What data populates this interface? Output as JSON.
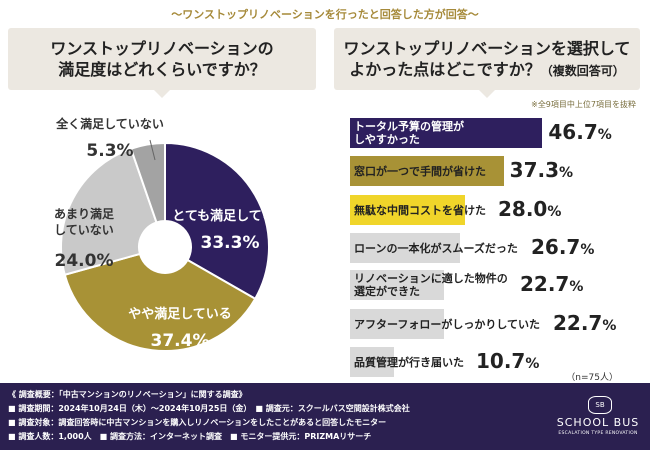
{
  "header": {
    "caption": "〜ワンストップリノベーションを行ったと回答した方が回答〜"
  },
  "left_panel": {
    "title_line1": "ワンストップリノベーションの",
    "title_line2": "満足度はどれくらいですか？"
  },
  "right_panel": {
    "title_line1": "ワンストップリノベーションを選択して",
    "title_line2": "よかった点はどこですか？",
    "title_suffix": "（複数回答可）",
    "note": "※全9項目中上位7項目を抜粋"
  },
  "chart_data": [
    {
      "type": "pie",
      "title": "ワンストップリノベーションの満足度はどれくらいですか？",
      "slices": [
        {
          "label": "とても満足している",
          "value": 33.3,
          "value_text": "33.3%",
          "color": "#2e1f5e"
        },
        {
          "label": "やや満足している",
          "value": 37.4,
          "value_text": "37.4%",
          "color": "#a89236"
        },
        {
          "label": "あまり満足していない",
          "value": 24.0,
          "value_text": "24.0%",
          "color": "#c9c9c9"
        },
        {
          "label": "全く満足していない",
          "value": 5.3,
          "value_text": "5.3%",
          "color": "#a3a3a3"
        }
      ]
    },
    {
      "type": "bar",
      "orientation": "horizontal",
      "title": "ワンストップリノベーションを選択してよかった点はどこですか？（複数回答可）",
      "xlim": [
        0,
        100
      ],
      "bars": [
        {
          "label": "トータル予算の管理が\nしやすかった",
          "value": 46.7,
          "num": "46.7",
          "color": "#2e1f5e",
          "text_color": "#ffffff"
        },
        {
          "label": "窓口が一つで手間が省けた",
          "value": 37.3,
          "num": "37.3",
          "color": "#a89236",
          "text_color": "#222222"
        },
        {
          "label": "無駄な中間コストを省けた",
          "value": 28.0,
          "num": "28.0",
          "color": "#f0d52a",
          "text_color": "#222222"
        },
        {
          "label": "ローンの一本化がスムーズだった",
          "value": 26.7,
          "num": "26.7",
          "color": "#d9d9d9",
          "text_color": "#222222"
        },
        {
          "label": "リノベーションに適した物件の\n選定ができた",
          "value": 22.7,
          "num": "22.7",
          "color": "#d9d9d9",
          "text_color": "#222222"
        },
        {
          "label": "アフターフォローがしっかりしていた",
          "value": 22.7,
          "num": "22.7",
          "color": "#d9d9d9",
          "text_color": "#222222"
        },
        {
          "label": "品質管理が行き届いた",
          "value": 10.7,
          "num": "10.7",
          "color": "#d9d9d9",
          "text_color": "#222222"
        }
      ],
      "percent_sign": "%",
      "sample_note": "（n=75人）"
    }
  ],
  "footer": {
    "lines": [
      "《 調査概要：「中古マンションのリノベーション」に関する調査》",
      "■ 調査期間：2024年10月24日（木）〜2024年10月25日（金）　■ 調査元：スクールバス空間設計株式会社",
      "■ 調査対象：調査回答時に中古マンションを購入しリノベーションをしたことがあると回答したモニター",
      "■ 調査人数：1,000人　■ 調査方法：インターネット調査　■ モニター提供元：PRIZMAリサーチ"
    ],
    "logo_mark": "SB",
    "logo_text": "SCHOOL BUS",
    "logo_sub": "ESCALATION TYPE RENOVATION"
  }
}
